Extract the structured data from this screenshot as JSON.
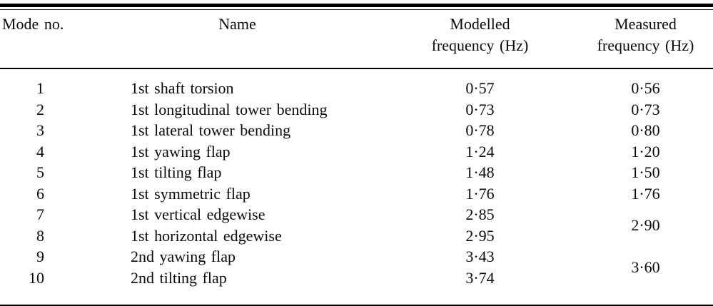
{
  "table": {
    "columns": {
      "mode": {
        "label": "Mode no."
      },
      "name": {
        "label": "Name"
      },
      "modelled": {
        "label": "Modelled\nfrequency (Hz)"
      },
      "measured": {
        "label": "Measured\nfrequency (Hz)"
      }
    },
    "rows": [
      {
        "mode": "1",
        "name": "1st shaft torsion",
        "modelled": "0·57",
        "measured": "0·56"
      },
      {
        "mode": "2",
        "name": "1st longitudinal tower bending",
        "modelled": "0·73",
        "measured": "0·73"
      },
      {
        "mode": "3",
        "name": "1st lateral tower bending",
        "modelled": "0·78",
        "measured": "0·80"
      },
      {
        "mode": "4",
        "name": "1st yawing flap",
        "modelled": "1·24",
        "measured": "1·20"
      },
      {
        "mode": "5",
        "name": "1st tilting flap",
        "modelled": "1·48",
        "measured": "1·50"
      },
      {
        "mode": "6",
        "name": "1st symmetric flap",
        "modelled": "1·76",
        "measured": "1·76"
      },
      {
        "mode": "7",
        "name": "1st vertical edgewise",
        "modelled": "2·85",
        "measured": "2·90",
        "measured_rowspan": 2
      },
      {
        "mode": "8",
        "name": "1st horizontal edgewise",
        "modelled": "2·95",
        "measured": null
      },
      {
        "mode": "9",
        "name": "2nd yawing flap",
        "modelled": "3·43",
        "measured": "3·60",
        "measured_rowspan": 2
      },
      {
        "mode": "10",
        "name": "2nd tilting flap",
        "modelled": "3·74",
        "measured": null
      }
    ]
  },
  "rules": {
    "color": "#000000"
  }
}
